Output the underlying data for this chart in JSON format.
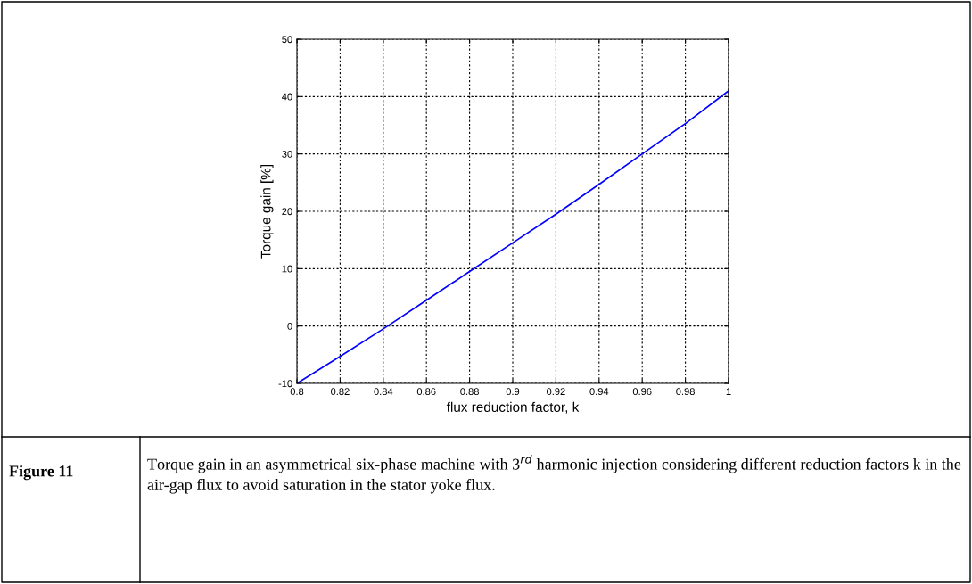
{
  "chart_data": {
    "type": "line",
    "xlabel": "flux reduction factor, k",
    "ylabel": "Torque gain [%]",
    "x": [
      0.8,
      0.82,
      0.84,
      0.86,
      0.88,
      0.9,
      0.92,
      0.94,
      0.96,
      0.98,
      1
    ],
    "series": [
      {
        "color": "#0000ff",
        "values": [
          -10,
          -5.3,
          -0.5,
          4.5,
          9.5,
          14.5,
          19.5,
          24.7,
          30,
          35.3,
          41
        ]
      }
    ],
    "xlim": [
      0.8,
      1
    ],
    "xticks": [
      0.8,
      0.82,
      0.84,
      0.86,
      0.88,
      0.9,
      0.92,
      0.94,
      0.96,
      0.98,
      1
    ],
    "ylim": [
      -10,
      50
    ],
    "yticks": [
      -10,
      0,
      10,
      20,
      30,
      40,
      50
    ],
    "grid": true,
    "line_style": "solid",
    "marker": "none",
    "legend": false,
    "annotations": [
      "Figure 11",
      "Torque gain in an asymmetrical six-phase machine with 3$^{rd}$ harmonic injection considering different reduction factors k in the air-gap flux to avoid saturation in the stator yoke flux."
    ]
  }
}
